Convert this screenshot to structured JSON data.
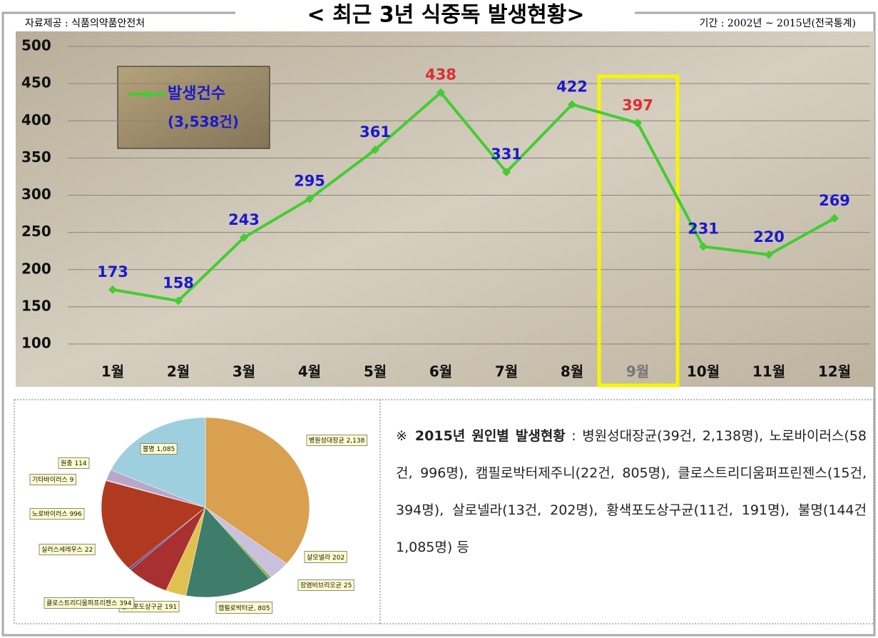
{
  "header": {
    "source": "자료제공 : 식품의약품안전처",
    "title": "< 최근 3년 식중독 발생현황>",
    "period": "기간 : 2002년 ~ 2015년(전국통계)"
  },
  "chart_data": [
    {
      "type": "line",
      "categories": [
        "1월",
        "2월",
        "3월",
        "4월",
        "5월",
        "6월",
        "7월",
        "8월",
        "9월",
        "10월",
        "11월",
        "12월"
      ],
      "series": [
        {
          "name": "발생건수",
          "color": "#44cc33",
          "values": [
            173,
            158,
            243,
            295,
            361,
            438,
            331,
            422,
            397,
            231,
            220,
            269
          ],
          "value_label_colors": [
            "#1a1acc",
            "#1a1acc",
            "#1a1acc",
            "#1a1acc",
            "#1a1acc",
            "#d83030",
            "#1a1acc",
            "#1a1acc",
            "#d83030",
            "#1a1acc",
            "#1a1acc",
            "#1a1acc"
          ]
        }
      ],
      "legend_subtitle": "(3,538건)",
      "highlight": "9월",
      "highlight_color": "#f5f500",
      "ylim": [
        100,
        500
      ],
      "yticks": [
        100,
        150,
        200,
        250,
        300,
        350,
        400,
        450,
        500
      ],
      "grid": true
    },
    {
      "type": "pie",
      "categories": [
        "병원성대장균",
        "살모넬라",
        "장염비브리오균",
        "캠필로박터균,",
        "황색포도상구균",
        "클로스트리디움퍼프리젠스",
        "실러스세레우스",
        "노로바이러스",
        "기타바이러스",
        "원충",
        "불명"
      ],
      "values": [
        2138,
        202,
        25,
        805,
        191,
        394,
        22,
        996,
        9,
        114,
        1085
      ],
      "value_labels": [
        "2,138",
        "202",
        "25",
        "805",
        "191",
        "394",
        "22",
        "996",
        "9",
        "114",
        "1,085"
      ],
      "colors": [
        "#d9a050",
        "#c8c0dc",
        "#8ab04a",
        "#3d7d6a",
        "#e0c050",
        "#a83030",
        "#4a4a9a",
        "#b03a20",
        "#c4b4d6",
        "#b8a8c8",
        "#9ecfdf"
      ]
    }
  ],
  "note": {
    "symbol": "※",
    "heading": "2015년 원인별 발생현황",
    "text": " : 병원성대장균(39건, 2,138명), 노로바이러스(58건, 996명), 캠필로박터제주니(22건, 805명), 클로스트리디움퍼프린젠스(15건, 394명), 살로넬라(13건, 202명), 황색포도상구균(11건, 191명), 불명(144건 1,085명) 등"
  }
}
